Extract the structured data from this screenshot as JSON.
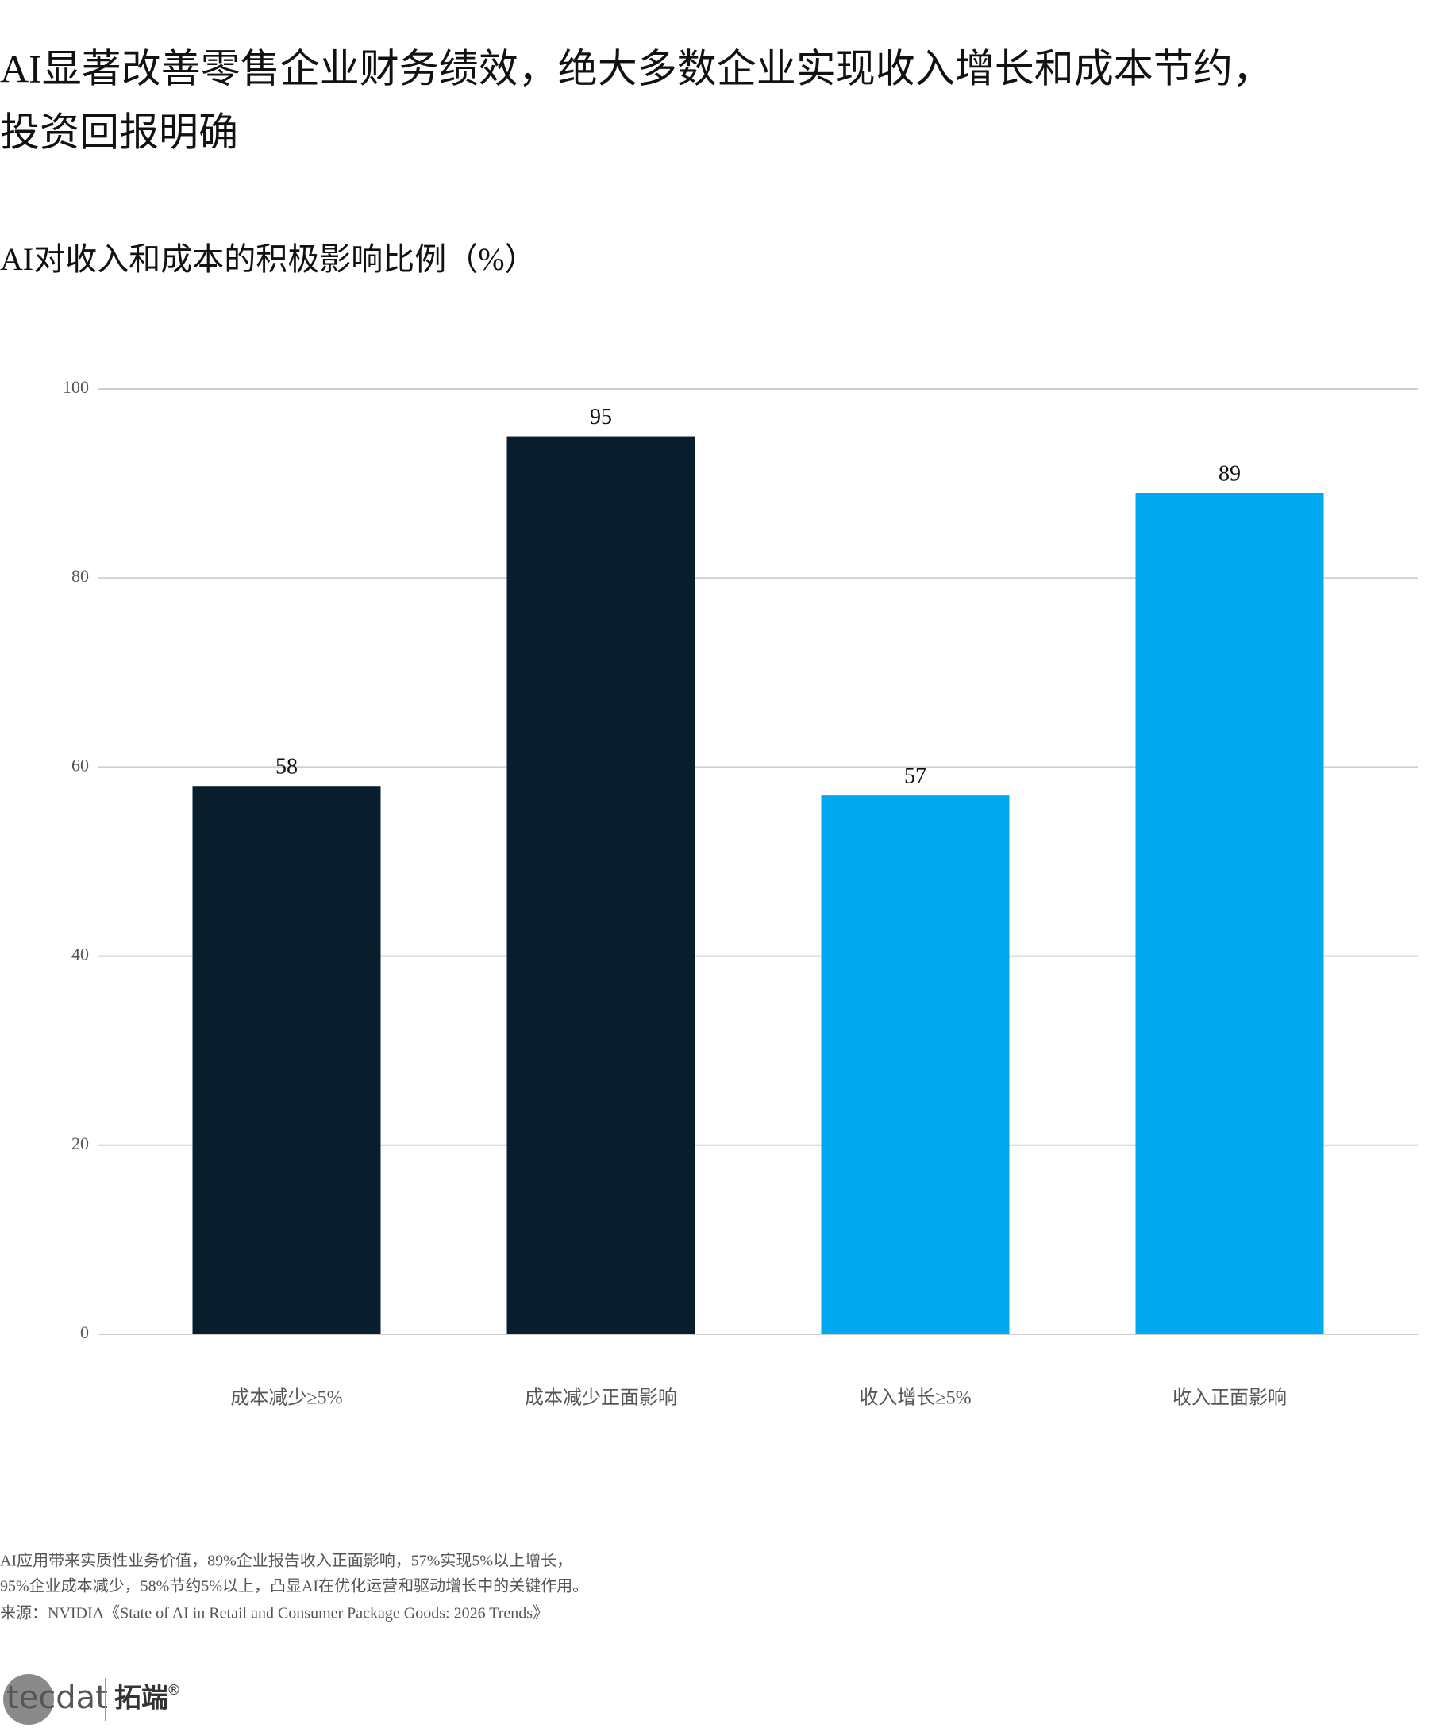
{
  "chart_data": {
    "type": "bar",
    "title": [
      "AI显著改善零售企业财务绩效，绝大多数企业实现收入增长和成本节约，",
      "投资回报明确"
    ],
    "subtitle": "AI对收入和成本的积极影响比例（%）",
    "categories": [
      "成本减少≥5%",
      "成本减少正面影响",
      "收入增长≥5%",
      "收入正面影响"
    ],
    "values": [
      58,
      95,
      57,
      89
    ],
    "colors": [
      "#091e2c",
      "#091e2c",
      "#00a8f0",
      "#00a8f0"
    ],
    "ylim": [
      0,
      100
    ],
    "yticks": [
      0,
      20,
      40,
      60,
      80,
      100
    ],
    "grid": true,
    "notes": [
      "AI应用带来实质性业务价值，89%企业报告收入正面影响，57%实现5%以上增长，",
      "95%企业成本减少，58%节约5%以上，凸显AI在优化运营和驱动增长中的关键作用。",
      "来源：NVIDIA《State of AI in Retail and Consumer Package Goods: 2026 Trends》"
    ]
  },
  "logo": {
    "brand": "tecdat",
    "name": "拓端",
    "mark": "®"
  }
}
